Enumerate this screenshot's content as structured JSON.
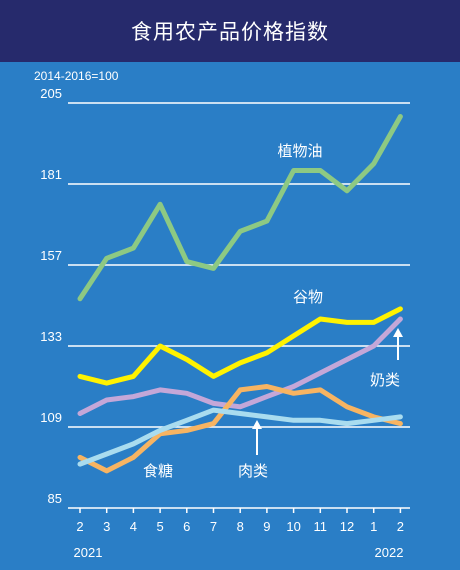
{
  "title": "食用农产品价格指数",
  "chart_data": {
    "type": "line",
    "title": "食用农产品价格指数",
    "base_note": "2014-2016=100",
    "x": [
      "2",
      "3",
      "4",
      "5",
      "6",
      "7",
      "8",
      "9",
      "10",
      "11",
      "12",
      "1",
      "2"
    ],
    "year_labels": [
      "2021",
      "2022"
    ],
    "ylim": [
      85,
      205
    ],
    "yticks": [
      85,
      109,
      133,
      157,
      181,
      205
    ],
    "grid": true,
    "series": [
      {
        "name": "植物油",
        "color": "#8dc983",
        "values": [
          147,
          159,
          162,
          175,
          158,
          156,
          167,
          170,
          185,
          185,
          179,
          187,
          201
        ]
      },
      {
        "name": "谷物",
        "color": "#fff200",
        "values": [
          124,
          122,
          124,
          133,
          129,
          124,
          128,
          131,
          136,
          141,
          140,
          140,
          144
        ]
      },
      {
        "name": "奶类",
        "color": "#c4a7d8",
        "values": [
          113,
          117,
          118,
          120,
          119,
          116,
          115,
          118,
          121,
          125,
          129,
          133,
          141
        ]
      },
      {
        "name": "食糖",
        "color": "#f7b462",
        "values": [
          100,
          96,
          100,
          107,
          108,
          110,
          120,
          121,
          119,
          120,
          115,
          112,
          110
        ]
      },
      {
        "name": "肉类",
        "color": "#a9dcef",
        "values": [
          98,
          101,
          104,
          108,
          111,
          114,
          113,
          112,
          111,
          111,
          110,
          111,
          112
        ]
      }
    ]
  }
}
